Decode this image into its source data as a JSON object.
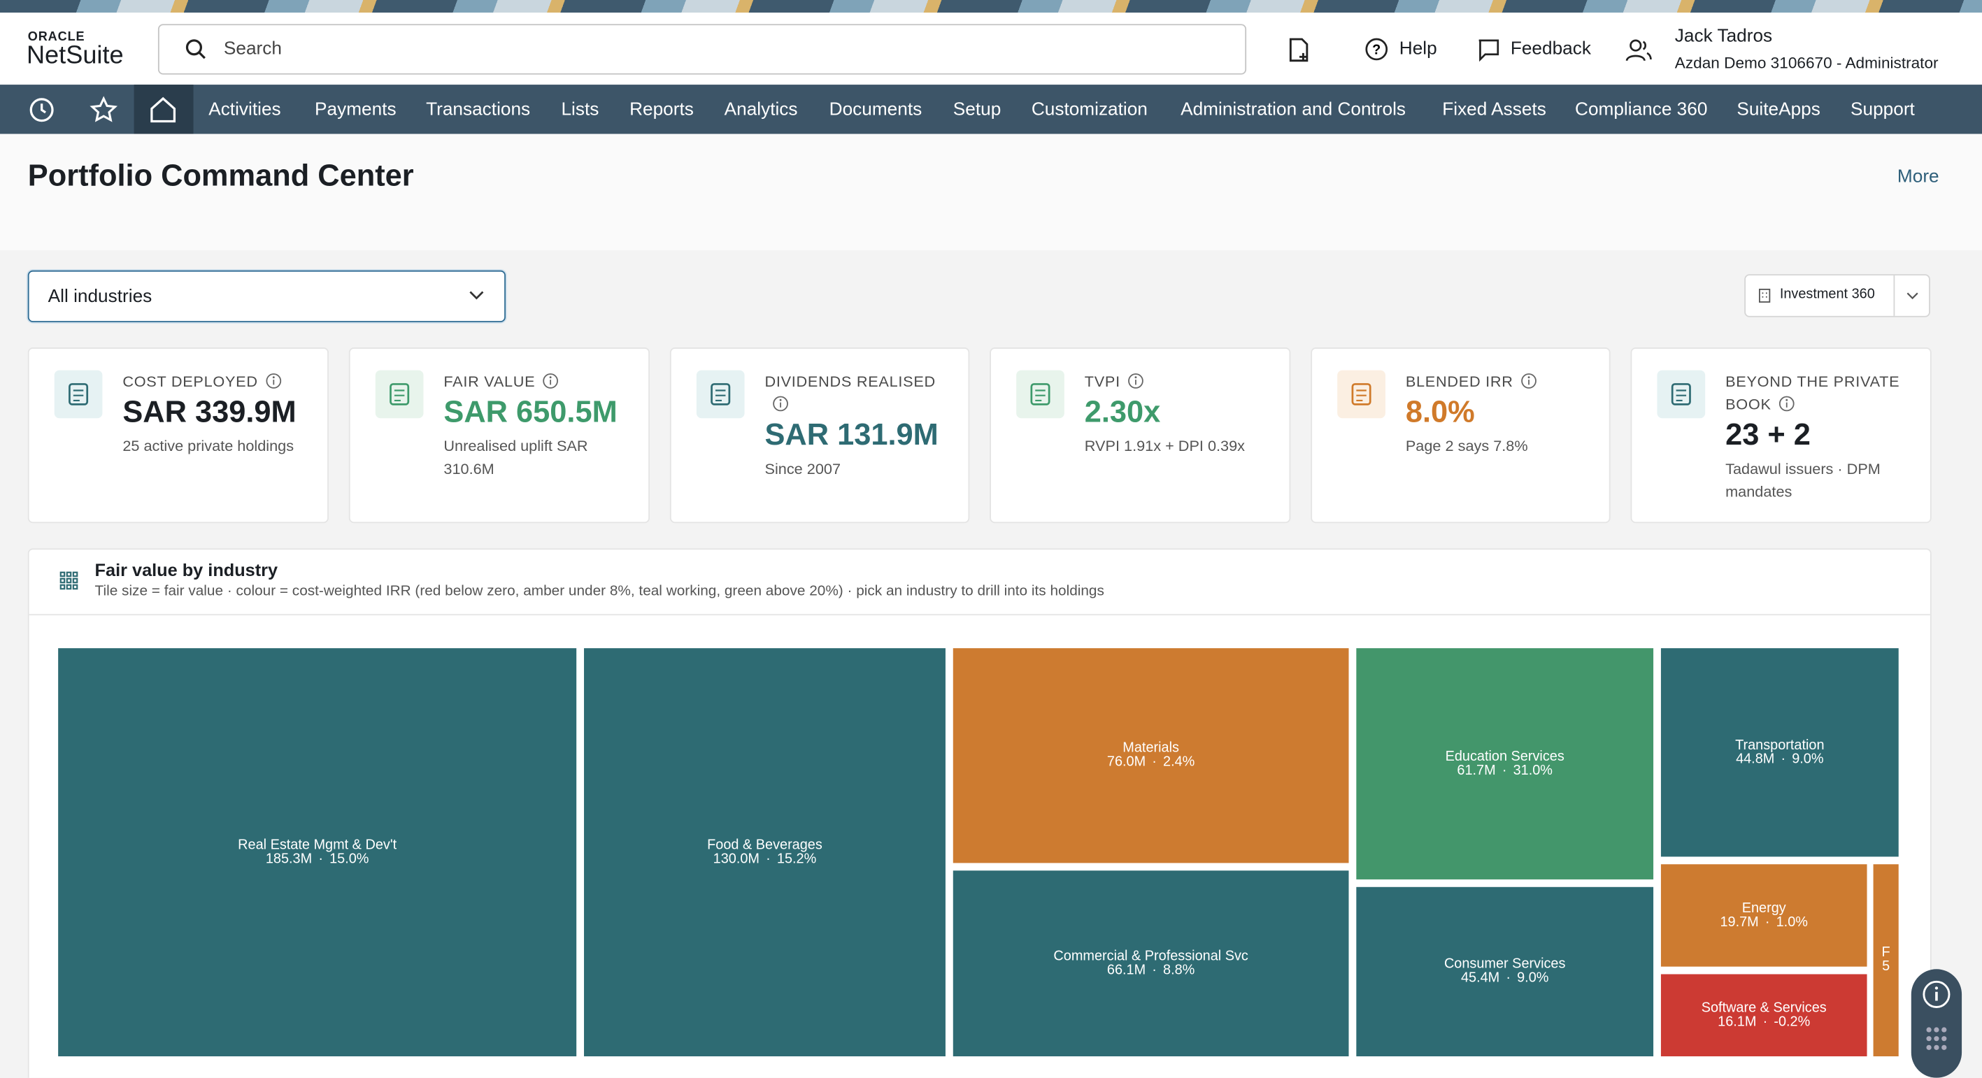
{
  "header": {
    "logo_top": "ORACLE",
    "logo": "NetSuite",
    "search": "Search",
    "help": "Help",
    "feedback": "Feedback",
    "user": "Jack Tadros",
    "role": "Azdan Demo 3106670 - Administrator"
  },
  "nav": [
    "Activities",
    "Payments",
    "Transactions",
    "Lists",
    "Reports",
    "Analytics",
    "Documents",
    "Setup",
    "Customization",
    "Administration and Controls",
    "Fixed Assets",
    "Compliance 360",
    "SuiteApps",
    "Support"
  ],
  "page": {
    "title": "Portfolio Command Center",
    "more": "More",
    "filter": "All industries",
    "view": "Investment 360"
  },
  "kpis": [
    {
      "label": "COST DEPLOYED",
      "value": "SAR 339.9M",
      "note": "25 active private holdings",
      "color": "#1b1f24"
    },
    {
      "label": "FAIR VALUE",
      "value": "SAR 650.5M",
      "note": "Unrealised uplift SAR 310.6M",
      "color": "#3e9a6b"
    },
    {
      "label": "DIVIDENDS REALISED",
      "value": "SAR 131.9M",
      "note": "Since 2007",
      "color": "#2e6b73"
    },
    {
      "label": "TVPI",
      "value": "2.30x",
      "note": "RVPI 1.91x + DPI 0.39x",
      "color": "#3e9a6b"
    },
    {
      "label": "BLENDED IRR",
      "value": "8.0%",
      "note": "Page 2 says 7.8%",
      "color": "#d07a2a"
    },
    {
      "label": "BEYOND THE PRIVATE BOOK",
      "value": "23 + 2",
      "note": "Tadawul issuers · DPM mandates",
      "color": "#1b1f24"
    }
  ],
  "treemap": {
    "title": "Fair value by industry",
    "subtitle": "Tile size = fair value · colour = cost-weighted IRR (red below zero, amber under 8%, teal working, green above 20%) · pick an industry to drill into its holdings",
    "tiles": [
      {
        "label": "Real Estate Mgmt & Dev't",
        "figure": "185.3M · 15.0%",
        "color": "#2e6b73"
      },
      {
        "label": "Food & Beverages",
        "figure": "130.0M · 15.2%",
        "color": "#2e6b73"
      },
      {
        "label": "Materials",
        "figure": "76.0M · 2.4%",
        "color": "#cd7b30"
      },
      {
        "label": "Commercial & Professional Svc",
        "figure": "66.1M · 8.8%",
        "color": "#2e6b73"
      },
      {
        "label": "Education Services",
        "figure": "61.7M · 31.0%",
        "color": "#43966b"
      },
      {
        "label": "Consumer Services",
        "figure": "45.4M · 9.0%",
        "color": "#2e6b73"
      },
      {
        "label": "Transportation",
        "figure": "44.8M · 9.0%",
        "color": "#2e6b73"
      },
      {
        "label": "Energy",
        "figure": "19.7M · 1.0%",
        "color": "#cd7b30"
      },
      {
        "label": "Software & Services",
        "figure": "16.1M · -0.2%",
        "color": "#cc3a33"
      },
      {
        "label": "F",
        "figure": "5",
        "color": "#cd7b30"
      }
    ]
  }
}
